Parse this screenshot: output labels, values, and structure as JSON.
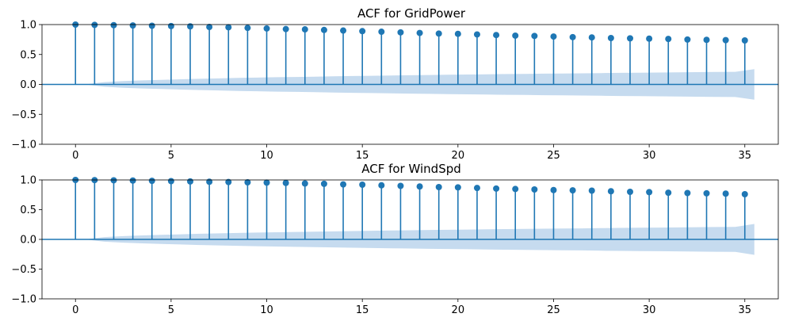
{
  "chart_data": [
    {
      "type": "stem",
      "title": "ACF for GridPower",
      "xlabel": "",
      "ylabel": "",
      "xlim": [
        -1.75,
        36.75
      ],
      "ylim": [
        -1.0,
        1.0
      ],
      "xticks": [
        0,
        5,
        10,
        15,
        20,
        25,
        30,
        35
      ],
      "xtick_labels": [
        "0",
        "5",
        "10",
        "15",
        "20",
        "25",
        "30",
        "35"
      ],
      "yticks": [
        1.0,
        0.5,
        0.0,
        -0.5,
        -1.0
      ],
      "ytick_labels": [
        "1.0",
        "0.5",
        "0.0",
        "−0.5",
        "−1.0"
      ],
      "grid": false,
      "zero_line": true,
      "lags": [
        0,
        1,
        2,
        3,
        4,
        5,
        6,
        7,
        8,
        9,
        10,
        11,
        12,
        13,
        14,
        15,
        16,
        17,
        18,
        19,
        20,
        21,
        22,
        23,
        24,
        25,
        26,
        27,
        28,
        29,
        30,
        31,
        32,
        33,
        34,
        35
      ],
      "values": [
        1.0,
        0.995,
        0.99,
        0.985,
        0.98,
        0.975,
        0.97,
        0.96,
        0.955,
        0.945,
        0.935,
        0.925,
        0.92,
        0.91,
        0.9,
        0.89,
        0.88,
        0.87,
        0.86,
        0.85,
        0.845,
        0.835,
        0.825,
        0.815,
        0.81,
        0.8,
        0.79,
        0.785,
        0.775,
        0.77,
        0.765,
        0.76,
        0.75,
        0.745,
        0.74,
        0.735
      ],
      "confidence_band": {
        "x_start": 0.5,
        "x_end": 35.5,
        "upper": [
          0.0,
          0.039,
          0.055,
          0.067,
          0.077,
          0.086,
          0.094,
          0.101,
          0.108,
          0.114,
          0.12,
          0.125,
          0.13,
          0.135,
          0.14,
          0.145,
          0.149,
          0.153,
          0.158,
          0.162,
          0.165,
          0.169,
          0.173,
          0.176,
          0.18,
          0.183,
          0.186,
          0.19,
          0.193,
          0.196,
          0.199,
          0.202,
          0.205,
          0.208,
          0.211,
          0.213
        ],
        "upper_at_end": 0.255
      },
      "colors": {
        "stem": "#1f77b4",
        "band": "#c6dbef",
        "zero_line": "#1f77b4"
      }
    },
    {
      "type": "stem",
      "title": "ACF for WindSpd",
      "xlabel": "",
      "ylabel": "",
      "xlim": [
        -1.75,
        36.75
      ],
      "ylim": [
        -1.0,
        1.0
      ],
      "xticks": [
        0,
        5,
        10,
        15,
        20,
        25,
        30,
        35
      ],
      "xtick_labels": [
        "0",
        "5",
        "10",
        "15",
        "20",
        "25",
        "30",
        "35"
      ],
      "yticks": [
        1.0,
        0.5,
        0.0,
        -0.5,
        -1.0
      ],
      "ytick_labels": [
        "1.0",
        "0.5",
        "0.0",
        "−0.5",
        "−1.0"
      ],
      "grid": false,
      "zero_line": true,
      "lags": [
        0,
        1,
        2,
        3,
        4,
        5,
        6,
        7,
        8,
        9,
        10,
        11,
        12,
        13,
        14,
        15,
        16,
        17,
        18,
        19,
        20,
        21,
        22,
        23,
        24,
        25,
        26,
        27,
        28,
        29,
        30,
        31,
        32,
        33,
        34,
        35
      ],
      "values": [
        1.0,
        0.997,
        0.994,
        0.99,
        0.985,
        0.98,
        0.975,
        0.97,
        0.965,
        0.96,
        0.955,
        0.95,
        0.94,
        0.935,
        0.925,
        0.92,
        0.91,
        0.9,
        0.89,
        0.88,
        0.875,
        0.865,
        0.855,
        0.848,
        0.84,
        0.83,
        0.825,
        0.82,
        0.81,
        0.8,
        0.795,
        0.785,
        0.78,
        0.775,
        0.77,
        0.76
      ],
      "confidence_band": {
        "x_start": 0.5,
        "x_end": 35.5,
        "upper": [
          0.0,
          0.039,
          0.055,
          0.067,
          0.077,
          0.086,
          0.094,
          0.101,
          0.108,
          0.114,
          0.12,
          0.125,
          0.13,
          0.135,
          0.14,
          0.145,
          0.149,
          0.153,
          0.158,
          0.162,
          0.165,
          0.169,
          0.173,
          0.176,
          0.18,
          0.183,
          0.186,
          0.19,
          0.193,
          0.196,
          0.199,
          0.202,
          0.205,
          0.208,
          0.211,
          0.213
        ],
        "upper_at_end": 0.26
      },
      "colors": {
        "stem": "#1f77b4",
        "band": "#c6dbef",
        "zero_line": "#1f77b4"
      }
    }
  ]
}
